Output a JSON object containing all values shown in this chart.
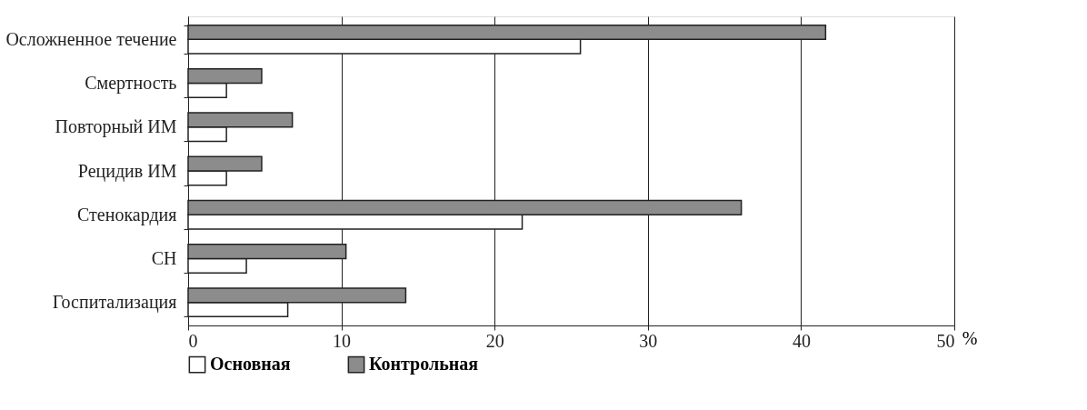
{
  "chart_data": {
    "type": "bar",
    "orientation": "horizontal",
    "xlabel": "%",
    "categories": [
      "Осложненное течение",
      "Смертность",
      "Повторный ИМ",
      "Рецидив ИМ",
      "Стенокардия",
      "СН",
      "Госпитализация"
    ],
    "series": [
      {
        "name": "Основная",
        "color": "#ffffff",
        "values": [
          25.6,
          2.5,
          2.5,
          2.5,
          21.8,
          3.8,
          6.5
        ]
      },
      {
        "name": "Контрольная",
        "color": "#8c8c8c",
        "values": [
          41.6,
          4.8,
          6.8,
          4.8,
          36.1,
          10.3,
          14.2
        ]
      }
    ],
    "xlim": [
      0,
      50
    ],
    "xticks": [
      0,
      10,
      20,
      30,
      40,
      50
    ],
    "grid": "x",
    "legend": "bottom"
  }
}
